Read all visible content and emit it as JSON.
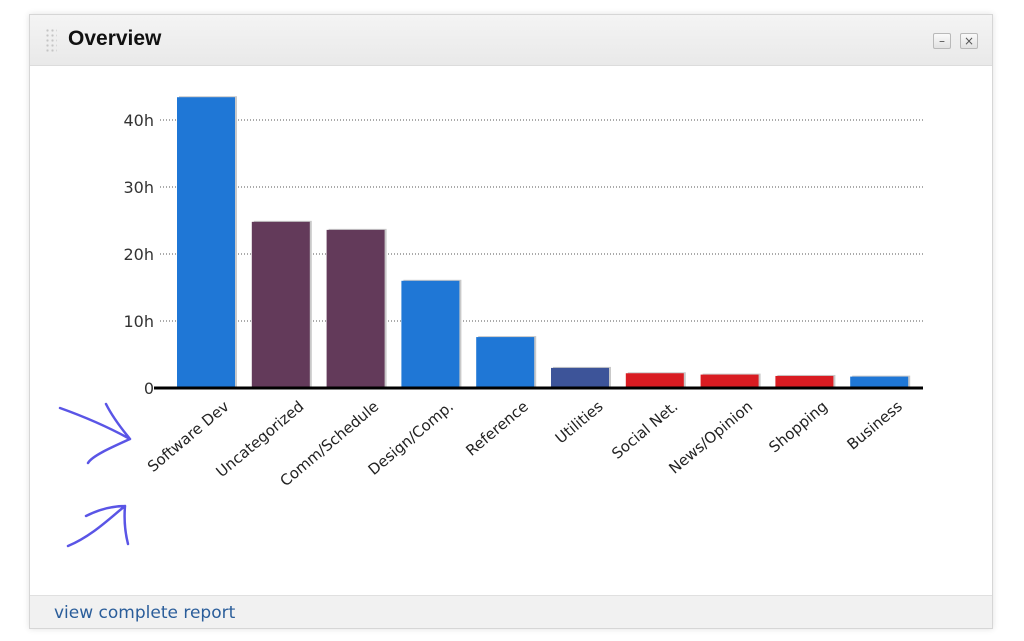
{
  "widget": {
    "title": "Overview",
    "minimize_label": "–",
    "close_label": "×",
    "footer_link": "view complete report"
  },
  "colors": {
    "blue": "#1f77d6",
    "plum": "#633a5a",
    "navy": "#3d5499",
    "red": "#d91c22"
  },
  "chart_data": {
    "type": "bar",
    "categories": [
      "Software Dev",
      "Uncategorized",
      "Comm/Schedule",
      "Design/Comp.",
      "Reference",
      "Utilities",
      "Social Net.",
      "News/Opinion",
      "Shopping",
      "Business"
    ],
    "values": [
      43.4,
      24.8,
      23.6,
      16.0,
      7.6,
      3.0,
      2.2,
      2.0,
      1.8,
      1.7
    ],
    "bar_colors": [
      "#1f77d6",
      "#633a5a",
      "#633a5a",
      "#1f77d6",
      "#1f77d6",
      "#3d5499",
      "#d91c22",
      "#d91c22",
      "#d91c22",
      "#1f77d6"
    ],
    "y_ticks": [
      0,
      10,
      20,
      30,
      40
    ],
    "y_tick_labels": [
      "0",
      "10h",
      "20h",
      "30h",
      "40h"
    ],
    "ylim": [
      0,
      44
    ],
    "grid": true,
    "title": "",
    "xlabel": "",
    "ylabel": ""
  },
  "annotations": {
    "arrow_color": "#5a55e6"
  }
}
